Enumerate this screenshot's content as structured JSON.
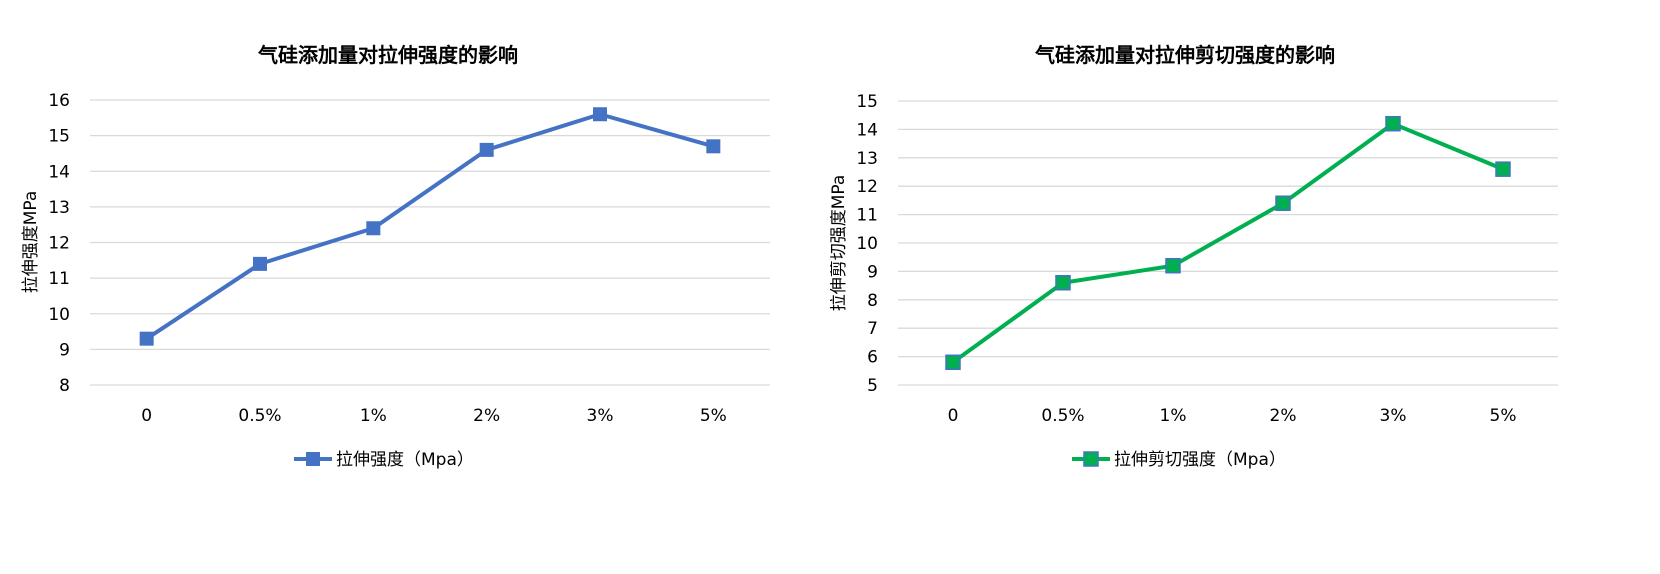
{
  "chart_data": [
    {
      "type": "line",
      "title": "气硅添加量对拉伸强度的影响",
      "xlabel": "",
      "ylabel": "拉伸强度MPa",
      "categories": [
        "0",
        "0.5%",
        "1%",
        "2%",
        "3%",
        "5%"
      ],
      "ylim": [
        8,
        16
      ],
      "yticks": [
        "8",
        "9",
        "10",
        "11",
        "12",
        "13",
        "14",
        "15",
        "16"
      ],
      "grid": true,
      "legend_position": "bottom",
      "series": [
        {
          "name": "拉伸强度（Mpa）",
          "values": [
            9.3,
            11.4,
            12.4,
            14.6,
            15.6,
            14.7
          ],
          "color": "#4472C4",
          "marker_fill": "#4472C4",
          "marker": "square"
        }
      ]
    },
    {
      "type": "line",
      "title": "气硅添加量对拉伸剪切强度的影响",
      "xlabel": "",
      "ylabel": "拉伸剪切强度MPa",
      "categories": [
        "0",
        "0.5%",
        "1%",
        "2%",
        "3%",
        "5%"
      ],
      "ylim": [
        5,
        15
      ],
      "yticks": [
        "5",
        "6",
        "7",
        "8",
        "9",
        "10",
        "11",
        "12",
        "13",
        "14",
        "15"
      ],
      "grid": true,
      "legend_position": "bottom",
      "series": [
        {
          "name": "拉伸剪切强度（Mpa）",
          "values": [
            5.8,
            8.6,
            9.2,
            11.4,
            14.2,
            12.6
          ],
          "color": "#00B050",
          "marker_fill": "#00B050",
          "marker_stroke": "#4472C4",
          "marker": "square"
        }
      ]
    }
  ]
}
